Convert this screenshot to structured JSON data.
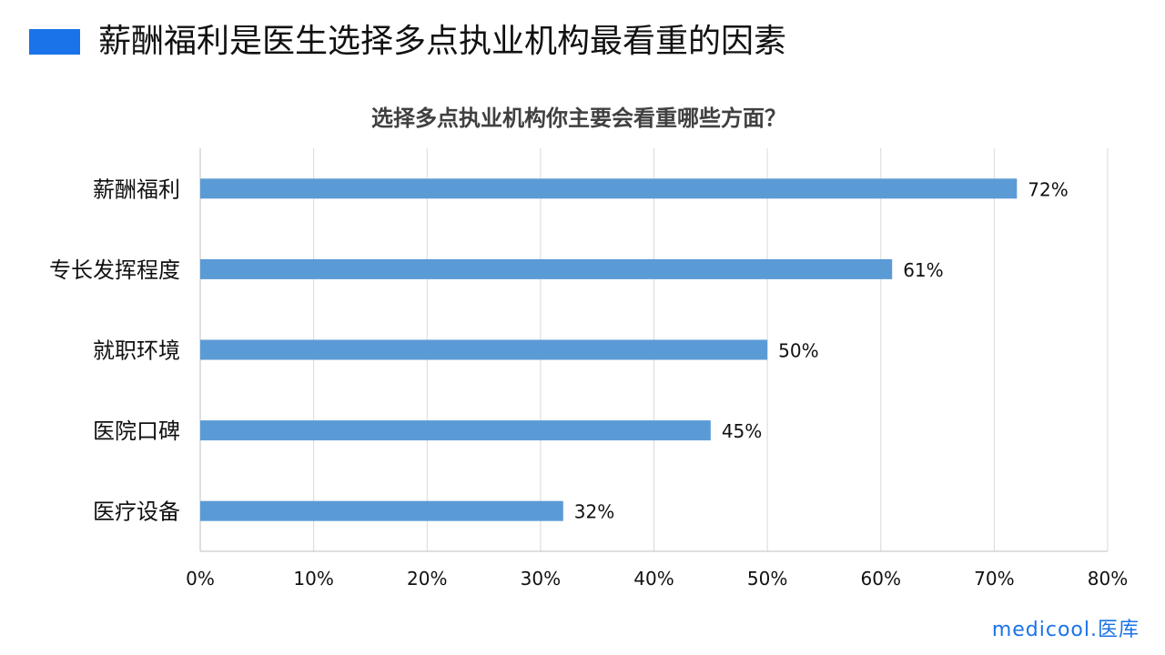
{
  "slide": {
    "title": "薪酬福利是医生选择多点执业机构最看重的因素",
    "accent_color": "#1a73e8"
  },
  "brand": {
    "name": "medicool",
    "dot": ".",
    "suffix": "医库"
  },
  "chart_data": {
    "type": "bar",
    "orientation": "horizontal",
    "title": "选择多点执业机构你主要会看重哪些方面？",
    "categories": [
      "薪酬福利",
      "专长发挥程度",
      "就职环境",
      "医院口碑",
      "医疗设备"
    ],
    "values": [
      72,
      61,
      50,
      45,
      32
    ],
    "value_labels": [
      "72%",
      "61%",
      "50%",
      "45%",
      "32%"
    ],
    "xlim": [
      0,
      80
    ],
    "xticks": [
      "0%",
      "10%",
      "20%",
      "30%",
      "40%",
      "50%",
      "60%",
      "70%",
      "80%"
    ],
    "grid": "vertical",
    "bar_color": "#5b9bd5"
  }
}
